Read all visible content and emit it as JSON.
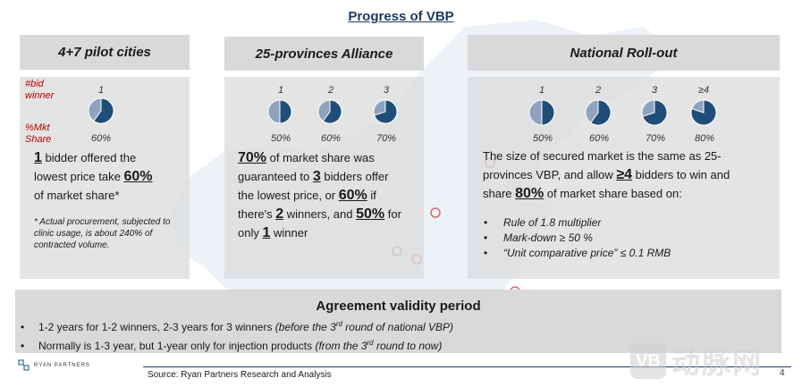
{
  "title": "Progress of VBP",
  "sections": {
    "pilot": {
      "header": "4+7 pilot cities",
      "label_bid": "#bid winner",
      "label_share": "%Mkt Share",
      "pies": [
        {
          "num": "1",
          "pct": "60%",
          "share": 0.6
        }
      ],
      "line1_num": "1",
      "line1_rest": " bidder offered the",
      "line2_pre": "lowest price take ",
      "line2_num": "60%",
      "line3": "of market share*",
      "note": "* Actual procurement, subjected to clinic usage, is about 240% of contracted volume."
    },
    "alliance": {
      "header": "25-provinces Alliance",
      "pies": [
        {
          "num": "1",
          "pct": "50%",
          "share": 0.5
        },
        {
          "num": "2",
          "pct": "60%",
          "share": 0.6
        },
        {
          "num": "3",
          "pct": "70%",
          "share": 0.7
        }
      ],
      "l1_num": "70%",
      "l1_rest": " of market share was",
      "l2_pre": "guaranteed to ",
      "l2_num": "3",
      "l2_rest": " bidders offer",
      "l3_pre": "the lowest price, or ",
      "l3_num": "60%",
      "l3_rest": " if",
      "l4_pre": "there's ",
      "l4_num": "2",
      "l4_mid": " winners, and ",
      "l4_num2": "50%",
      "l4_rest": " for",
      "l5_pre": "only ",
      "l5_num": "1",
      "l5_rest": " winner"
    },
    "national": {
      "header": "National Roll-out",
      "pies": [
        {
          "num": "1",
          "pct": "50%",
          "share": 0.5
        },
        {
          "num": "2",
          "pct": "60%",
          "share": 0.6
        },
        {
          "num": "3",
          "pct": "70%",
          "share": 0.7
        },
        {
          "num": "≥4",
          "pct": "80%",
          "share": 0.8
        }
      ],
      "l1": "The size of secured market is the same as 25-",
      "l2_pre": "provinces VBP, and allow ",
      "l2_num": "≥4",
      "l2_rest": " bidders to win and",
      "l3_pre": "share ",
      "l3_num": "80%",
      "l3_rest": " of market share based on:",
      "bullets": [
        "Rule of 1.8 multiplier",
        "Mark-down ≥ 50 %",
        "“Unit comparative price” ≤ 0.1 RMB"
      ]
    }
  },
  "agreement": {
    "title": "Agreement validity period",
    "b1_main": "1-2 years for 1-2 winners, 2-3 years for 3 winners ",
    "b1_note_pre": "(before the 3",
    "b1_note_sup": "rd",
    "b1_note_post": " round of national VBP)",
    "b2_main": "Normally is 1-3 year, but 1-year only for injection products ",
    "b2_note_pre": "(from the 3",
    "b2_note_sup": "rd",
    "b2_note_post": " round to now)"
  },
  "footer": {
    "source": "Source: Ryan Partners Research and Analysis",
    "page": "4",
    "logo_text": "RYAN PARTNERS",
    "watermark_mark": "VB",
    "watermark_text": "动脉网"
  },
  "colors": {
    "pie_fill": "#1f4e79",
    "pie_rest": "#8fa3bf",
    "accent_red": "#c00000",
    "panel": "#d9d9d9"
  }
}
